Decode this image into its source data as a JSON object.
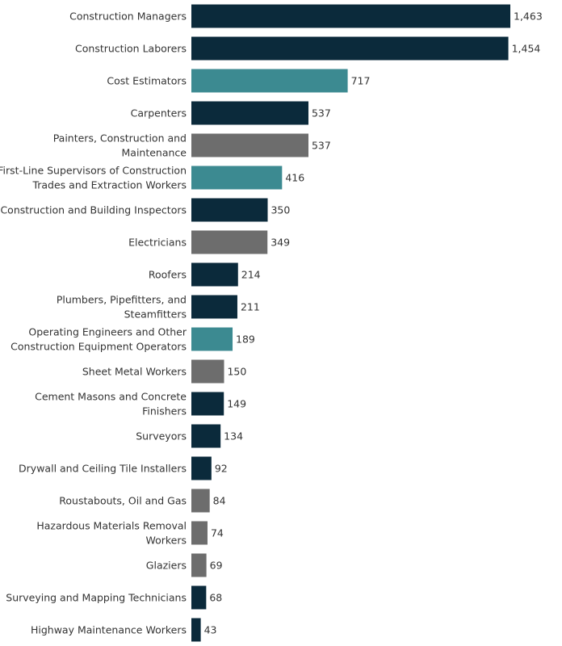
{
  "chart_data": {
    "type": "bar",
    "orientation": "horizontal",
    "title": "",
    "xlabel": "",
    "ylabel": "",
    "xlim": [
      0,
      1463
    ],
    "grid": false,
    "categories": [
      "Construction Managers",
      "Construction Laborers",
      "Cost Estimators",
      "Carpenters",
      "Painters, Construction and Maintenance",
      "First-Line Supervisors of Construction Trades and Extraction Workers",
      "Construction and Building Inspectors",
      "Electricians",
      "Roofers",
      "Plumbers, Pipefitters, and Steamfitters",
      "Operating Engineers and Other Construction Equipment Operators",
      "Sheet Metal Workers",
      "Cement Masons and Concrete Finishers",
      "Surveyors",
      "Drywall and Ceiling Tile Installers",
      "Roustabouts, Oil and Gas",
      "Hazardous Materials Removal Workers",
      "Glaziers",
      "Surveying and Mapping Technicians",
      "Highway Maintenance Workers"
    ],
    "category_lines": [
      [
        "Construction Managers"
      ],
      [
        "Construction Laborers"
      ],
      [
        "Cost Estimators"
      ],
      [
        "Carpenters"
      ],
      [
        "Painters, Construction and",
        "Maintenance"
      ],
      [
        "First-Line Supervisors of Construction",
        "Trades and Extraction Workers"
      ],
      [
        "Construction and Building Inspectors"
      ],
      [
        "Electricians"
      ],
      [
        "Roofers"
      ],
      [
        "Plumbers, Pipefitters, and",
        "Steamfitters"
      ],
      [
        "Operating Engineers and Other",
        "Construction Equipment Operators"
      ],
      [
        "Sheet Metal Workers"
      ],
      [
        "Cement Masons and Concrete",
        "Finishers"
      ],
      [
        "Surveyors"
      ],
      [
        "Drywall and Ceiling Tile Installers"
      ],
      [
        "Roustabouts, Oil and Gas"
      ],
      [
        "Hazardous Materials Removal",
        "Workers"
      ],
      [
        "Glaziers"
      ],
      [
        "Surveying and Mapping Technicians"
      ],
      [
        "Highway Maintenance Workers"
      ]
    ],
    "values": [
      1463,
      1454,
      717,
      537,
      537,
      416,
      350,
      349,
      214,
      211,
      189,
      150,
      149,
      134,
      92,
      84,
      74,
      69,
      68,
      43
    ],
    "value_labels": [
      "1,463",
      "1,454",
      "717",
      "537",
      "537",
      "416",
      "350",
      "349",
      "214",
      "211",
      "189",
      "150",
      "149",
      "134",
      "92",
      "84",
      "74",
      "69",
      "68",
      "43"
    ],
    "color_groups": [
      "navy",
      "navy",
      "teal",
      "navy",
      "gray",
      "teal",
      "navy",
      "gray",
      "navy",
      "navy",
      "teal",
      "gray",
      "navy",
      "navy",
      "navy",
      "gray",
      "gray",
      "gray",
      "navy",
      "navy"
    ],
    "colors": {
      "navy": "#0b2a3b",
      "teal": "#3c8a91",
      "gray": "#6d6d6d"
    }
  }
}
